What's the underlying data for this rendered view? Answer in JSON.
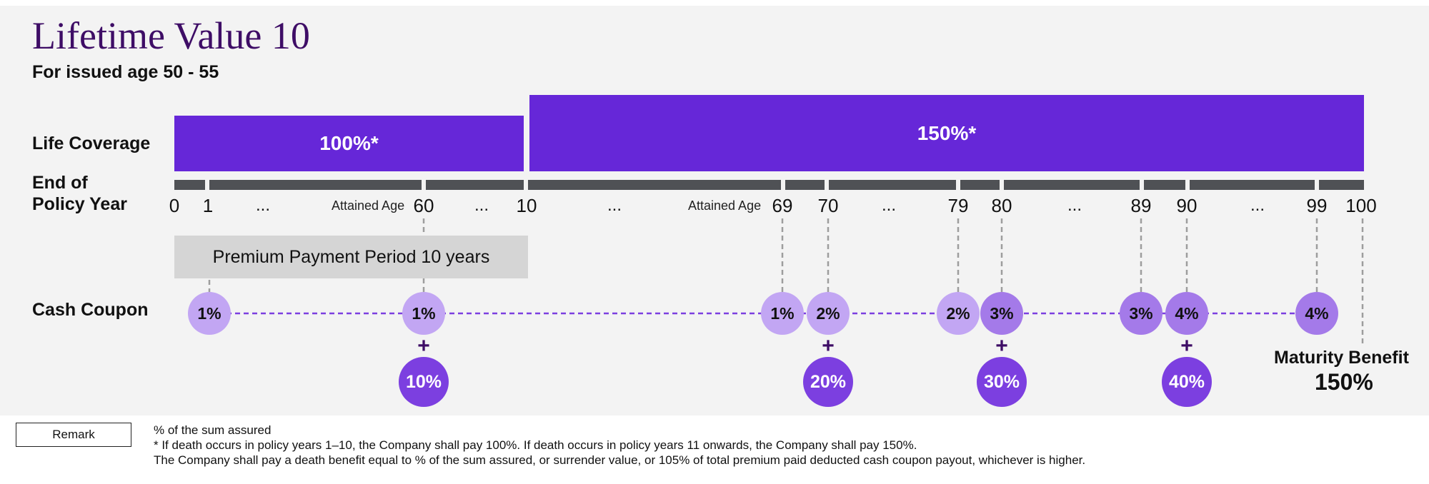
{
  "title": "Lifetime Value 10",
  "subtitle": "For issued age 50 - 55",
  "labels": {
    "life_coverage": "Life Coverage",
    "end_of": "End of",
    "policy_year": "Policy Year",
    "cash_coupon": "Cash Coupon"
  },
  "coverage": {
    "first": "100%*",
    "second": "150%*"
  },
  "timeline": {
    "ticks": [
      "0",
      "1",
      "60",
      "10",
      "69",
      "70",
      "79",
      "80",
      "89",
      "90",
      "99",
      "100"
    ],
    "ellipsis": "...",
    "attained_age": "Attained Age"
  },
  "premium_period": "Premium Payment Period 10 years",
  "coupons": [
    "1%",
    "1%",
    "1%",
    "2%",
    "2%",
    "3%",
    "3%",
    "4%",
    "4%"
  ],
  "bonuses": [
    "10%",
    "20%",
    "30%",
    "40%"
  ],
  "plus_sign": "+",
  "maturity": {
    "label": "Maturity Benefit",
    "value": "150%"
  },
  "remark": {
    "button_label": "Remark",
    "lines": [
      "% of the sum assured",
      "* If death occurs in policy years 1–10, the Company shall pay 100%. If death occurs in policy years 11 onwards, the Company shall pay 150%.",
      "The Company shall pay a death benefit equal to % of the sum assured, or surrender value, or 105% of total premium paid deducted cash coupon payout, whichever is higher."
    ]
  },
  "colors": {
    "title": "#3e0d66",
    "coverage_bar": "#6627d8",
    "coupon_light": "#c2a6f3",
    "coupon_mid": "#a47ae9",
    "bonus": "#7c3fe0",
    "panel_bg": "#f3f3f3"
  }
}
